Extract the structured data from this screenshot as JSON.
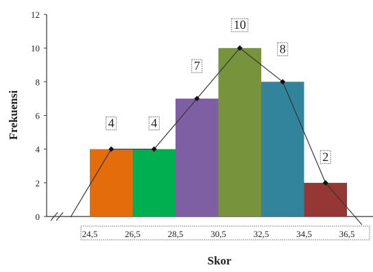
{
  "chart_data": {
    "type": "histogram_with_polygon",
    "xlabel": "Skor",
    "ylabel": "Frekuensi",
    "ylim": [
      0,
      12
    ],
    "yticks": [
      0,
      2,
      4,
      6,
      8,
      10,
      12
    ],
    "class_boundaries": [
      "24,5",
      "26,5",
      "28,5",
      "30,5",
      "32,5",
      "34,5",
      "36,5"
    ],
    "bars": [
      {
        "value": 4,
        "label": "4",
        "color": "#e46c0a"
      },
      {
        "value": 4,
        "label": "4",
        "color": "#00b050"
      },
      {
        "value": 7,
        "label": "7",
        "color": "#7f5fa3"
      },
      {
        "value": 10,
        "label": "10",
        "color": "#77933c"
      },
      {
        "value": 8,
        "label": "8",
        "color": "#31849b"
      },
      {
        "value": 2,
        "label": "2",
        "color": "#953735"
      }
    ],
    "axis_break": true,
    "grid": false,
    "legend": "none"
  }
}
